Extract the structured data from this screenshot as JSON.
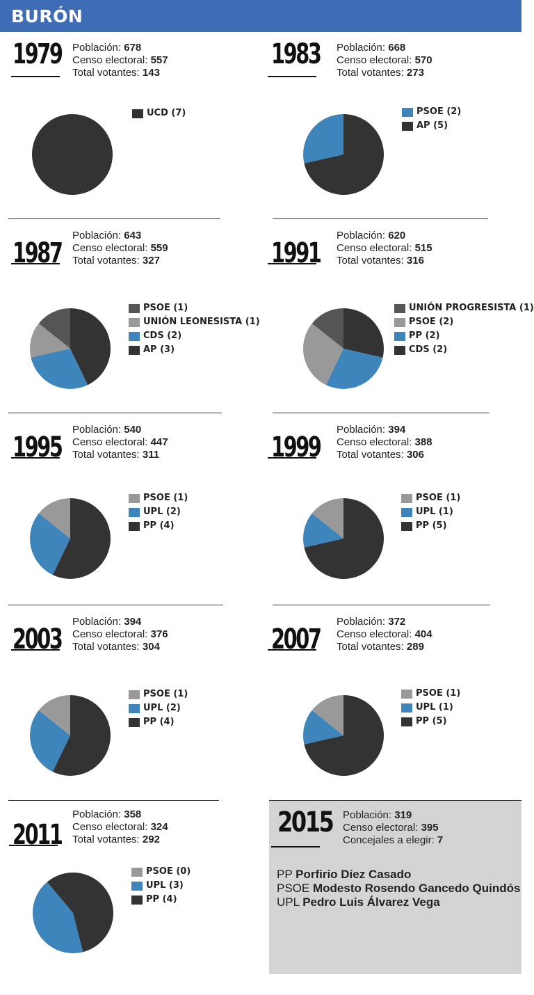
{
  "header": {
    "title": "BURÓN"
  },
  "labels": {
    "poblacion": "Población:",
    "censo": "Censo electoral:",
    "votantes": "Total votantes:",
    "concejales": "Concejales a elegir:"
  },
  "colors": {
    "dark": "#333333",
    "blue": "#3d85bb",
    "gray": "#999999",
    "darkgray": "#555555",
    "header": "#3f6db5",
    "box": "#d4d4d4"
  },
  "chart_data": [
    {
      "type": "pie",
      "year": "1979",
      "poblacion": "678",
      "censo": "557",
      "votantes": "143",
      "slices": [
        {
          "label": "UCD (7)",
          "value": 7,
          "color": "#333333"
        }
      ]
    },
    {
      "type": "pie",
      "year": "1983",
      "poblacion": "668",
      "censo": "570",
      "votantes": "273",
      "slices": [
        {
          "label": "PSOE (2)",
          "value": 2,
          "color": "#3d85bb"
        },
        {
          "label": "AP (5)",
          "value": 5,
          "color": "#333333"
        }
      ]
    },
    {
      "type": "pie",
      "year": "1987",
      "poblacion": "643",
      "censo": "559",
      "votantes": "327",
      "slices": [
        {
          "label": "PSOE (1)",
          "value": 1,
          "color": "#555555"
        },
        {
          "label": "UNIÓN LEONESISTA (1)",
          "value": 1,
          "color": "#999999"
        },
        {
          "label": "CDS (2)",
          "value": 2,
          "color": "#3d85bb"
        },
        {
          "label": "AP (3)",
          "value": 3,
          "color": "#333333"
        }
      ]
    },
    {
      "type": "pie",
      "year": "1991",
      "poblacion": "620",
      "censo": "515",
      "votantes": "316",
      "slices": [
        {
          "label": "UNIÓN PROGRESISTA (1)",
          "value": 1,
          "color": "#555555"
        },
        {
          "label": "PSOE (2)",
          "value": 2,
          "color": "#999999"
        },
        {
          "label": "PP (2)",
          "value": 2,
          "color": "#3d85bb"
        },
        {
          "label": "CDS (2)",
          "value": 2,
          "color": "#333333"
        }
      ]
    },
    {
      "type": "pie",
      "year": "1995",
      "poblacion": "540",
      "censo": "447",
      "votantes": "311",
      "slices": [
        {
          "label": "PSOE (1)",
          "value": 1,
          "color": "#999999"
        },
        {
          "label": "UPL (2)",
          "value": 2,
          "color": "#3d85bb"
        },
        {
          "label": "PP (4)",
          "value": 4,
          "color": "#333333"
        }
      ]
    },
    {
      "type": "pie",
      "year": "1999",
      "poblacion": "394",
      "censo": "388",
      "votantes": "306",
      "slices": [
        {
          "label": "PSOE (1)",
          "value": 1,
          "color": "#999999"
        },
        {
          "label": "UPL (1)",
          "value": 1,
          "color": "#3d85bb"
        },
        {
          "label": "PP (5)",
          "value": 5,
          "color": "#333333"
        }
      ]
    },
    {
      "type": "pie",
      "year": "2003",
      "poblacion": "394",
      "censo": "376",
      "votantes": "304",
      "slices": [
        {
          "label": "PSOE (1)",
          "value": 1,
          "color": "#999999"
        },
        {
          "label": "UPL (2)",
          "value": 2,
          "color": "#3d85bb"
        },
        {
          "label": "PP (4)",
          "value": 4,
          "color": "#333333"
        }
      ]
    },
    {
      "type": "pie",
      "year": "2007",
      "poblacion": "372",
      "censo": "404",
      "votantes": "289",
      "slices": [
        {
          "label": "PSOE (1)",
          "value": 1,
          "color": "#999999"
        },
        {
          "label": "UPL (1)",
          "value": 1,
          "color": "#3d85bb"
        },
        {
          "label": "PP (5)",
          "value": 5,
          "color": "#333333"
        }
      ]
    },
    {
      "type": "pie",
      "year": "2011",
      "poblacion": "358",
      "censo": "324",
      "votantes": "292",
      "slices": [
        {
          "label": "PSOE (0)",
          "value": 0,
          "color": "#999999"
        },
        {
          "label": "UPL (3)",
          "value": 3,
          "color": "#3d85bb"
        },
        {
          "label": "PP (4)",
          "value": 4,
          "color": "#333333"
        }
      ]
    }
  ],
  "pie_starts": [
    0,
    0,
    0,
    0,
    0,
    0,
    0,
    0,
    -40
  ],
  "y2015": {
    "year": "2015",
    "poblacion": "319",
    "censo": "395",
    "concejales": "7",
    "candidates": [
      {
        "party": "PP",
        "name": "Porfirio Díez Casado"
      },
      {
        "party": "PSOE",
        "name": "Modesto Rosendo Gancedo Quindós"
      },
      {
        "party": "UPL",
        "name": "Pedro Luis Álvarez Vega"
      }
    ]
  }
}
